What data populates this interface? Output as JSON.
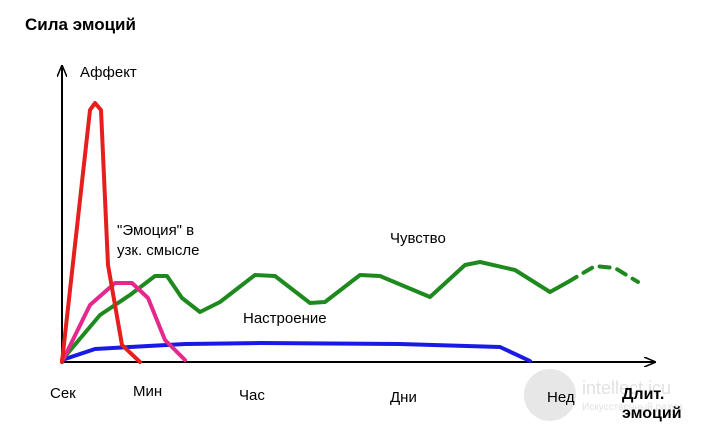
{
  "y_axis_title": "Сила эмоций",
  "x_axis_title": [
    "Длит.",
    "эмоций"
  ],
  "x_labels": [
    "Сек",
    "Мин",
    "Час",
    "Дни",
    "Нед"
  ],
  "curve_labels": {
    "affect": "Аффект",
    "emotion": [
      "\"Эмоция\" в",
      "узк. смысле"
    ],
    "feeling": "Чувство",
    "mood": "Настроение"
  },
  "watermark": [
    "intellect.icu",
    "Искусственный разум"
  ]
}
